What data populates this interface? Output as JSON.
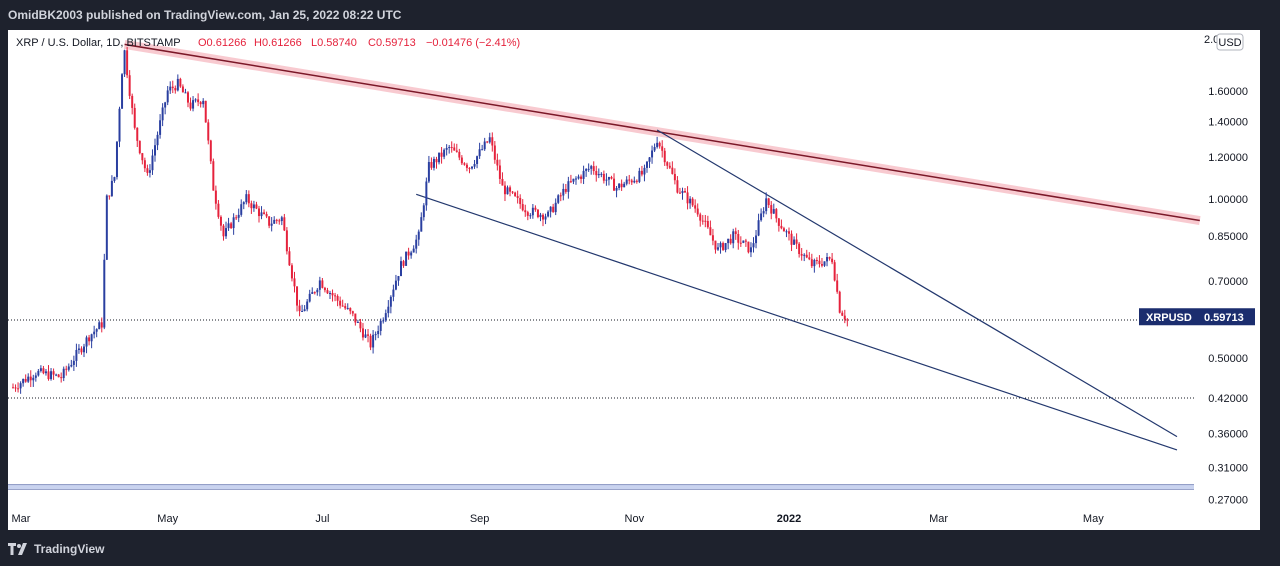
{
  "header": {
    "publisher_line": "OmidBK2003 published on TradingView.com, Jan 25, 2022 08:22 UTC"
  },
  "legend": {
    "symbol": "XRP / U.S. Dollar, 1D, BITSTAMP",
    "open": "O0.61266",
    "high": "H0.61266",
    "low": "L0.58740",
    "close": "C0.59713",
    "change": "−0.01476 (−2.41%)"
  },
  "price_scale": {
    "currency_button": "USD",
    "top_partial": "2.0"
  },
  "price_tag": {
    "symbol": "XRPUSD",
    "value": "0.59713"
  },
  "footer": {
    "brand": "TradingView"
  },
  "colors": {
    "up": "#2a3fa0",
    "down": "#e5223c",
    "resistance": "#7b1828",
    "resistance_band": "#f5b8c0",
    "wedge": "#23386e",
    "price_tag_bg": "#1b2d6e",
    "background": "#ffffff"
  },
  "chart_data": {
    "type": "candlestick",
    "symbol": "XRPUSD",
    "y_scale": "log",
    "y_ticks": [
      "1.60000",
      "1.40000",
      "1.20000",
      "1.00000",
      "0.85000",
      "0.70000",
      "0.50000",
      "0.42000",
      "0.36000",
      "0.31000",
      "0.27000"
    ],
    "x_ticks": [
      "Mar",
      "May",
      "Jul",
      "Sep",
      "Nov",
      "2022",
      "Mar",
      "May"
    ],
    "last_price": 0.59713,
    "horizontal_levels": [
      0.59,
      0.42,
      0.285
    ],
    "trendlines": [
      {
        "name": "resistance",
        "from": [
          "2021-04-14",
          1.96
        ],
        "to": [
          "2022-06-12",
          0.91
        ]
      },
      {
        "name": "wedge-upper",
        "from": [
          "2021-11-10",
          1.35
        ],
        "to": [
          "2022-06-03",
          0.355
        ]
      },
      {
        "name": "wedge-lower",
        "from": [
          "2021-08-07",
          1.02
        ],
        "to": [
          "2022-06-03",
          0.335
        ]
      }
    ],
    "price_path": [
      [
        "2021-03-01",
        0.44
      ],
      [
        "2021-03-10",
        0.47
      ],
      [
        "2021-03-20",
        0.46
      ],
      [
        "2021-03-31",
        0.55
      ],
      [
        "2021-04-05",
        0.58
      ],
      [
        "2021-04-07",
        1.0
      ],
      [
        "2021-04-10",
        1.1
      ],
      [
        "2021-04-13",
        1.75
      ],
      [
        "2021-04-14",
        1.9
      ],
      [
        "2021-04-18",
        1.35
      ],
      [
        "2021-04-23",
        1.1
      ],
      [
        "2021-05-01",
        1.6
      ],
      [
        "2021-05-05",
        1.65
      ],
      [
        "2021-05-10",
        1.5
      ],
      [
        "2021-05-15",
        1.55
      ],
      [
        "2021-05-19",
        1.05
      ],
      [
        "2021-05-23",
        0.85
      ],
      [
        "2021-06-01",
        1.0
      ],
      [
        "2021-06-10",
        0.9
      ],
      [
        "2021-06-15",
        0.92
      ],
      [
        "2021-06-22",
        0.6
      ],
      [
        "2021-06-30",
        0.7
      ],
      [
        "2021-07-06",
        0.65
      ],
      [
        "2021-07-13",
        0.6
      ],
      [
        "2021-07-20",
        0.53
      ],
      [
        "2021-07-25",
        0.6
      ],
      [
        "2021-08-01",
        0.75
      ],
      [
        "2021-08-08",
        0.85
      ],
      [
        "2021-08-12",
        1.15
      ],
      [
        "2021-08-20",
        1.25
      ],
      [
        "2021-08-28",
        1.15
      ],
      [
        "2021-09-05",
        1.3
      ],
      [
        "2021-09-10",
        1.05
      ],
      [
        "2021-09-20",
        0.95
      ],
      [
        "2021-09-28",
        0.93
      ],
      [
        "2021-10-05",
        1.05
      ],
      [
        "2021-10-15",
        1.15
      ],
      [
        "2021-10-25",
        1.05
      ],
      [
        "2021-11-05",
        1.12
      ],
      [
        "2021-11-10",
        1.3
      ],
      [
        "2021-11-18",
        1.05
      ],
      [
        "2021-11-26",
        0.95
      ],
      [
        "2021-12-04",
        0.8
      ],
      [
        "2021-12-10",
        0.85
      ],
      [
        "2021-12-17",
        0.8
      ],
      [
        "2021-12-23",
        1.0
      ],
      [
        "2021-12-27",
        0.92
      ],
      [
        "2022-01-03",
        0.82
      ],
      [
        "2022-01-10",
        0.75
      ],
      [
        "2022-01-18",
        0.77
      ],
      [
        "2022-01-21",
        0.62
      ],
      [
        "2022-01-24",
        0.59
      ]
    ]
  }
}
